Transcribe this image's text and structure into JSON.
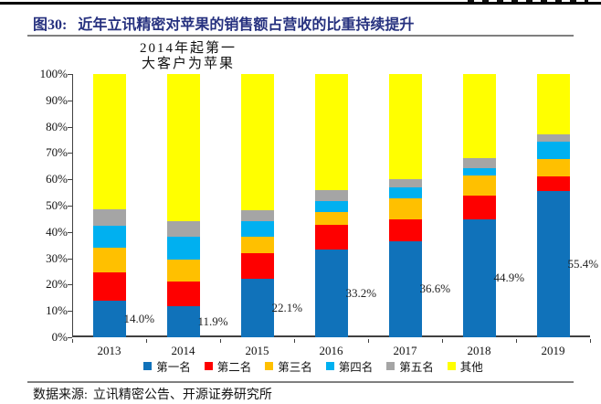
{
  "figure": {
    "number_label": "图30:",
    "title": "近年立讯精密对苹果的销售额占营收的比重持续提升",
    "source_label": "数据来源:",
    "source_text": "立讯精密公告、开源证券研究所"
  },
  "colors": {
    "title": "#26317F",
    "rule": "#7F7F7F",
    "header_bar": "#000000",
    "axis": "#404040"
  },
  "chart_data": {
    "type": "bar",
    "stacked": true,
    "annotation": [
      "2014年起第一",
      "大客户为苹果"
    ],
    "categories": [
      "2013",
      "2014",
      "2015",
      "2016",
      "2017",
      "2018",
      "2019"
    ],
    "series": [
      {
        "name": "第一名",
        "color": "#1072BA",
        "values": [
          14.0,
          11.9,
          22.1,
          33.2,
          36.6,
          44.9,
          55.4
        ]
      },
      {
        "name": "第二名",
        "color": "#FE0000",
        "values": [
          10.7,
          9.3,
          9.9,
          9.5,
          8.2,
          9.0,
          5.8
        ]
      },
      {
        "name": "第三名",
        "color": "#FFC000",
        "values": [
          9.2,
          8.3,
          6.1,
          4.8,
          8.0,
          7.5,
          6.4
        ]
      },
      {
        "name": "第四名",
        "color": "#00B0F0",
        "values": [
          8.4,
          8.7,
          5.9,
          4.3,
          4.0,
          3.0,
          6.7
        ]
      },
      {
        "name": "第五名",
        "color": "#A5A5A5",
        "values": [
          6.2,
          5.9,
          4.4,
          4.0,
          3.4,
          3.5,
          2.8
        ]
      },
      {
        "name": "其他",
        "color": "#FFFF00",
        "values": [
          51.5,
          55.9,
          51.6,
          44.2,
          39.8,
          32.1,
          22.9
        ]
      }
    ],
    "data_labels": [
      "14.0%",
      "11.9%",
      "22.1%",
      "33.2%",
      "36.6%",
      "44.9%",
      "55.4%"
    ],
    "data_labels_series": "第一名",
    "y_ticks": [
      "0%",
      "10%",
      "20%",
      "30%",
      "40%",
      "50%",
      "60%",
      "70%",
      "80%",
      "90%",
      "100%"
    ],
    "ylim": [
      0,
      100
    ],
    "grid": false,
    "legend_position": "bottom"
  }
}
